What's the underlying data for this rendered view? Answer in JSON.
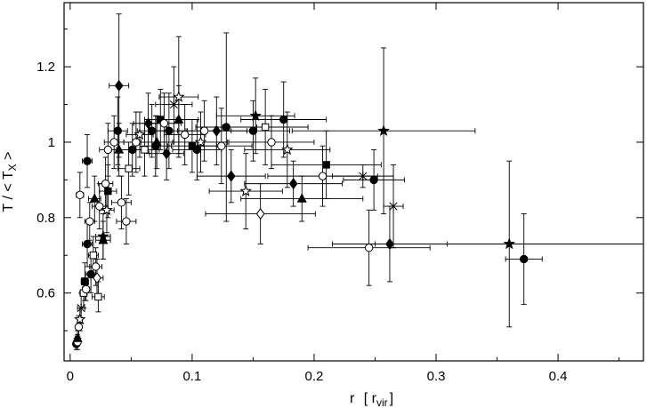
{
  "chart_data": {
    "type": "scatter",
    "title": "",
    "xlabel_main": "r",
    "xlabel_unit_prefix": "[ r",
    "xlabel_unit_sub": "vir",
    "xlabel_unit_suffix": "]",
    "ylabel_main": "T / < T",
    "ylabel_sub": "X",
    "ylabel_suffix": " >",
    "xlim": [
      -0.005,
      0.47
    ],
    "ylim": [
      0.42,
      1.37
    ],
    "x_ticks": [
      0,
      0.1,
      0.2,
      0.3,
      0.4
    ],
    "x_tick_labels": [
      "0",
      "0.1",
      "0.2",
      "0.3",
      "0.4"
    ],
    "y_ticks": [
      0.6,
      0.8,
      1.0,
      1.2
    ],
    "y_tick_labels": [
      "0.6",
      "0.8",
      "1",
      "1.2"
    ],
    "grid": false,
    "marker_legend": "none",
    "points": [
      {
        "m": "circle-filled",
        "x": 0.005,
        "y": 0.465,
        "xe": 0.002,
        "ye": 0.015
      },
      {
        "m": "circle-open",
        "x": 0.006,
        "y": 0.47,
        "xe": 0.002,
        "ye": 0.02
      },
      {
        "m": "triangle-filled",
        "x": 0.006,
        "y": 0.48,
        "xe": 0.002,
        "ye": 0.02
      },
      {
        "m": "circle-open",
        "x": 0.007,
        "y": 0.51,
        "xe": 0.002,
        "ye": 0.03
      },
      {
        "m": "star-open",
        "x": 0.008,
        "y": 0.53,
        "xe": 0.002,
        "ye": 0.03
      },
      {
        "m": "cross",
        "x": 0.009,
        "y": 0.56,
        "xe": 0.003,
        "ye": 0.04
      },
      {
        "m": "square-open",
        "x": 0.011,
        "y": 0.6,
        "xe": 0.003,
        "ye": 0.04
      },
      {
        "m": "circle-open",
        "x": 0.013,
        "y": 0.61,
        "xe": 0.003,
        "ye": 0.03
      },
      {
        "m": "square-filled",
        "x": 0.012,
        "y": 0.63,
        "xe": 0.003,
        "ye": 0.05
      },
      {
        "m": "circle-open",
        "x": 0.008,
        "y": 0.86,
        "xe": 0.003,
        "ye": 0.06
      },
      {
        "m": "circle-filled",
        "x": 0.014,
        "y": 0.95,
        "xe": 0.004,
        "ye": 0.07
      },
      {
        "m": "circle-filled",
        "x": 0.014,
        "y": 0.73,
        "xe": 0.004,
        "ye": 0.06
      },
      {
        "m": "circle-open",
        "x": 0.016,
        "y": 0.79,
        "xe": 0.004,
        "ye": 0.05
      },
      {
        "m": "circle-filled",
        "x": 0.017,
        "y": 0.65,
        "xe": 0.004,
        "ye": 0.05
      },
      {
        "m": "square-open",
        "x": 0.019,
        "y": 0.7,
        "xe": 0.004,
        "ye": 0.05
      },
      {
        "m": "triangle-filled",
        "x": 0.02,
        "y": 0.85,
        "xe": 0.005,
        "ye": 0.06
      },
      {
        "m": "circle-open",
        "x": 0.021,
        "y": 0.67,
        "xe": 0.005,
        "ye": 0.05
      },
      {
        "m": "square-open",
        "x": 0.023,
        "y": 0.59,
        "xe": 0.005,
        "ye": 0.04
      },
      {
        "m": "diamond-open",
        "x": 0.022,
        "y": 0.64,
        "xe": 0.005,
        "ye": 0.05
      },
      {
        "m": "circle-open",
        "x": 0.024,
        "y": 0.83,
        "xe": 0.006,
        "ye": 0.06
      },
      {
        "m": "star-filled",
        "x": 0.027,
        "y": 0.75,
        "xe": 0.006,
        "ye": 0.06
      },
      {
        "m": "triangle-filled",
        "x": 0.027,
        "y": 0.74,
        "xe": 0.006,
        "ye": 0.05
      },
      {
        "m": "circle-open",
        "x": 0.029,
        "y": 0.89,
        "xe": 0.006,
        "ye": 0.07
      },
      {
        "m": "square-filled",
        "x": 0.031,
        "y": 0.87,
        "xe": 0.007,
        "ye": 0.07
      },
      {
        "m": "circle-open",
        "x": 0.031,
        "y": 0.98,
        "xe": 0.007,
        "ye": 0.07
      },
      {
        "m": "star-open",
        "x": 0.03,
        "y": 0.82,
        "xe": 0.006,
        "ye": 0.06
      },
      {
        "m": "circle-open",
        "x": 0.036,
        "y": 1.0,
        "xe": 0.008,
        "ye": 0.07
      },
      {
        "m": "circle-filled",
        "x": 0.039,
        "y": 1.03,
        "xe": 0.008,
        "ye": 0.09
      },
      {
        "m": "triangle-filled",
        "x": 0.04,
        "y": 0.98,
        "xe": 0.008,
        "ye": 0.07
      },
      {
        "m": "diamond-filled",
        "x": 0.04,
        "y": 1.15,
        "xe": 0.008,
        "ye": 0.19
      },
      {
        "m": "circle-open",
        "x": 0.042,
        "y": 0.84,
        "xe": 0.008,
        "ye": 0.07
      },
      {
        "m": "circle-open",
        "x": 0.046,
        "y": 0.79,
        "xe": 0.008,
        "ye": 0.06
      },
      {
        "m": "square-open",
        "x": 0.048,
        "y": 0.93,
        "xe": 0.009,
        "ye": 0.07
      },
      {
        "m": "circle-filled",
        "x": 0.051,
        "y": 0.98,
        "xe": 0.01,
        "ye": 0.07
      },
      {
        "m": "circle-open",
        "x": 0.054,
        "y": 1.0,
        "xe": 0.01,
        "ye": 0.08
      },
      {
        "m": "star-open",
        "x": 0.057,
        "y": 1.02,
        "xe": 0.011,
        "ye": 0.06
      },
      {
        "m": "square-open",
        "x": 0.061,
        "y": 0.98,
        "xe": 0.012,
        "ye": 0.07
      },
      {
        "m": "diamond-filled",
        "x": 0.064,
        "y": 1.05,
        "xe": 0.012,
        "ye": 0.08
      },
      {
        "m": "circle-filled",
        "x": 0.067,
        "y": 1.03,
        "xe": 0.012,
        "ye": 0.07
      },
      {
        "m": "circle-filled",
        "x": 0.07,
        "y": 0.99,
        "xe": 0.013,
        "ye": 0.08
      },
      {
        "m": "triangle-filled",
        "x": 0.071,
        "y": 1.0,
        "xe": 0.013,
        "ye": 0.07
      },
      {
        "m": "square-filled",
        "x": 0.074,
        "y": 1.06,
        "xe": 0.013,
        "ye": 0.08
      },
      {
        "m": "circle-open",
        "x": 0.077,
        "y": 1.05,
        "xe": 0.014,
        "ye": 0.08
      },
      {
        "m": "diamond-filled",
        "x": 0.079,
        "y": 0.97,
        "xe": 0.014,
        "ye": 0.07
      },
      {
        "m": "circle-filled",
        "x": 0.081,
        "y": 1.03,
        "xe": 0.015,
        "ye": 0.1
      },
      {
        "m": "cross",
        "x": 0.085,
        "y": 1.1,
        "xe": 0.015,
        "ye": 0.1
      },
      {
        "m": "triangle-filled",
        "x": 0.089,
        "y": 1.06,
        "xe": 0.016,
        "ye": 0.09
      },
      {
        "m": "star-open",
        "x": 0.089,
        "y": 1.12,
        "xe": 0.016,
        "ye": 0.16
      },
      {
        "m": "circle-open",
        "x": 0.094,
        "y": 1.02,
        "xe": 0.017,
        "ye": 0.08
      },
      {
        "m": "square-filled",
        "x": 0.1,
        "y": 0.99,
        "xe": 0.02,
        "ye": 0.07
      },
      {
        "m": "circle-filled",
        "x": 0.104,
        "y": 0.98,
        "xe": 0.02,
        "ye": 0.08
      },
      {
        "m": "star-open",
        "x": 0.107,
        "y": 1.0,
        "xe": 0.022,
        "ye": 0.08
      },
      {
        "m": "circle-open",
        "x": 0.11,
        "y": 1.03,
        "xe": 0.022,
        "ye": 0.08
      },
      {
        "m": "diamond-filled",
        "x": 0.12,
        "y": 1.03,
        "xe": 0.025,
        "ye": 0.09
      },
      {
        "m": "circle-filled",
        "x": 0.128,
        "y": 1.04,
        "xe": 0.025,
        "ye": 0.25
      },
      {
        "m": "circle-open",
        "x": 0.124,
        "y": 0.99,
        "xe": 0.025,
        "ye": 0.1
      },
      {
        "m": "diamond-filled",
        "x": 0.132,
        "y": 0.91,
        "xe": 0.028,
        "ye": 0.07
      },
      {
        "m": "star-open",
        "x": 0.144,
        "y": 0.87,
        "xe": 0.03,
        "ye": 0.1
      },
      {
        "m": "circle-filled",
        "x": 0.15,
        "y": 1.03,
        "xe": 0.03,
        "ye": 0.08
      },
      {
        "m": "star-filled",
        "x": 0.152,
        "y": 1.07,
        "xe": 0.032,
        "ye": 0.1
      },
      {
        "m": "diamond-open",
        "x": 0.156,
        "y": 0.81,
        "xe": 0.045,
        "ye": 0.08
      },
      {
        "m": "square-open",
        "x": 0.16,
        "y": 1.04,
        "xe": 0.035,
        "ye": 0.1
      },
      {
        "m": "circle-open",
        "x": 0.165,
        "y": 1.0,
        "xe": 0.035,
        "ye": 0.07
      },
      {
        "m": "circle-filled",
        "x": 0.175,
        "y": 1.06,
        "xe": 0.035,
        "ye": 0.1
      },
      {
        "m": "star-open",
        "x": 0.178,
        "y": 0.98,
        "xe": 0.035,
        "ye": 0.1
      },
      {
        "m": "diamond-filled",
        "x": 0.183,
        "y": 0.89,
        "xe": 0.04,
        "ye": 0.06
      },
      {
        "m": "triangle-filled",
        "x": 0.19,
        "y": 0.85,
        "xe": 0.05,
        "ye": 0.06
      },
      {
        "m": "square-filled",
        "x": 0.21,
        "y": 0.94,
        "xe": 0.045,
        "ye": 0.09
      },
      {
        "m": "circle-open",
        "x": 0.207,
        "y": 0.91,
        "xe": 0.045,
        "ye": 0.08
      },
      {
        "m": "cross",
        "x": 0.24,
        "y": 0.91,
        "xe": 0.025,
        "ye": 0.03
      },
      {
        "m": "circle-open",
        "x": 0.245,
        "y": 0.72,
        "xe": 0.05,
        "ye": 0.1
      },
      {
        "m": "circle-filled",
        "x": 0.249,
        "y": 0.9,
        "xe": 0.025,
        "ye": 0.08
      },
      {
        "m": "star-filled",
        "x": 0.257,
        "y": 1.03,
        "xe": 0.075,
        "ye": 0.22
      },
      {
        "m": "diamond-filled",
        "x": 0.262,
        "y": 0.73,
        "xe": 0.047,
        "ye": 0.1
      },
      {
        "m": "cross",
        "x": 0.265,
        "y": 0.83,
        "xe": 0.008,
        "ye": 0.11
      },
      {
        "m": "star-filled",
        "x": 0.36,
        "y": 0.73,
        "xe": 0.11,
        "ye": 0.22
      },
      {
        "m": "circle-filled",
        "x": 0.372,
        "y": 0.69,
        "xe": 0.015,
        "ye": 0.12
      }
    ]
  }
}
